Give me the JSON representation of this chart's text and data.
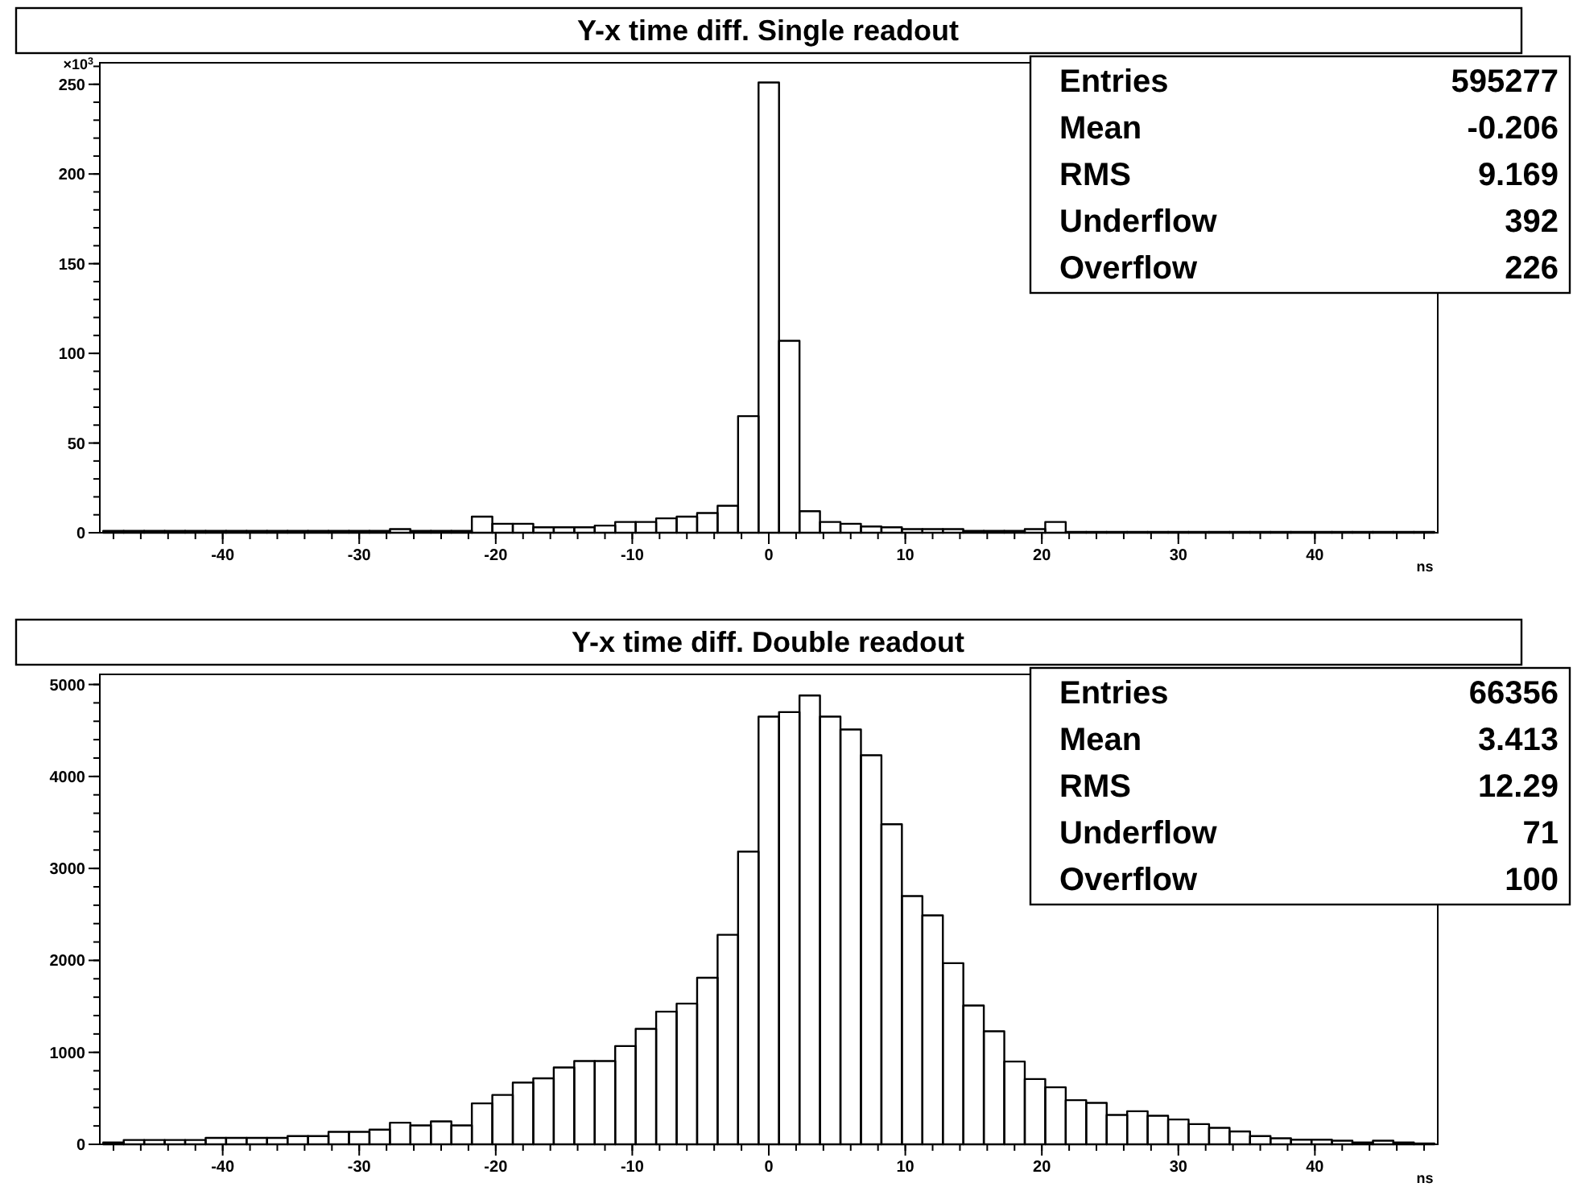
{
  "chart_data": [
    {
      "type": "histogram",
      "title": "Y-x time diff. Single readout",
      "xlabel": "ns",
      "ylabel": "×10$^{3}$",
      "color": "#000000",
      "bins": [
        -48.75,
        -47.25,
        -45.75,
        -44.25,
        -42.75,
        -41.25,
        -39.75,
        -38.25,
        -36.75,
        -35.25,
        -33.75,
        -32.25,
        -30.75,
        -29.25,
        -27.75,
        -26.25,
        -24.75,
        -23.25,
        -21.75,
        -20.25,
        -18.75,
        -17.25,
        -15.75,
        -14.25,
        -12.75,
        -11.25,
        -9.75,
        -8.25,
        -6.75,
        -5.25,
        -3.75,
        -2.25,
        -0.75,
        0.75,
        2.25,
        3.75,
        5.25,
        6.75,
        8.25,
        9.75,
        11.25,
        12.75,
        14.25,
        15.75,
        17.25,
        18.75,
        20.25,
        21.75,
        23.25,
        24.75,
        26.25,
        27.75,
        29.25,
        30.75,
        32.25,
        33.75,
        35.25,
        36.75,
        38.25,
        39.75,
        41.25,
        42.75,
        44.25,
        45.75,
        47.25,
        48.75
      ],
      "values": [
        1,
        1,
        1,
        1,
        1,
        1,
        1,
        1,
        1,
        1,
        1,
        1,
        1,
        1,
        2,
        1,
        1,
        1,
        9,
        5,
        5,
        3,
        3,
        3,
        4,
        6,
        6,
        8,
        9,
        11,
        15,
        65,
        251,
        107,
        12,
        6,
        5,
        3.5,
        3,
        2,
        2,
        2,
        1,
        1,
        1,
        2,
        6,
        0.5,
        0.5,
        0.5,
        0.5,
        0.5,
        0.5,
        0.5,
        0.5,
        0.5,
        0.5,
        0.5,
        0.5,
        0.5,
        0.5,
        0.5,
        0.5,
        0.5,
        0.5
      ],
      "xlim": [
        -49,
        49
      ],
      "xticks": [
        -40,
        -30,
        -20,
        -10,
        0,
        10,
        20,
        30,
        40
      ],
      "ylim": [
        0,
        262
      ],
      "yticks": [
        0,
        50,
        100,
        150,
        200,
        250
      ],
      "annotations": [
        "Entries",
        "595277",
        "Mean",
        "-0.206",
        "RMS",
        "9.169",
        "Underflow",
        "392",
        "Overflow",
        "226"
      ]
    },
    {
      "type": "histogram",
      "title": "Y-x time diff. Double readout",
      "xlabel": "ns",
      "color": "#000000",
      "bins": [
        -48.75,
        -47.25,
        -45.75,
        -44.25,
        -42.75,
        -41.25,
        -39.75,
        -38.25,
        -36.75,
        -35.25,
        -33.75,
        -32.25,
        -30.75,
        -29.25,
        -27.75,
        -26.25,
        -24.75,
        -23.25,
        -21.75,
        -20.25,
        -18.75,
        -17.25,
        -15.75,
        -14.25,
        -12.75,
        -11.25,
        -9.75,
        -8.25,
        -6.75,
        -5.25,
        -3.75,
        -2.25,
        -0.75,
        0.75,
        2.25,
        3.75,
        5.25,
        6.75,
        8.25,
        9.75,
        11.25,
        12.75,
        14.25,
        15.75,
        17.25,
        18.75,
        20.25,
        21.75,
        23.25,
        24.75,
        26.25,
        27.75,
        29.25,
        30.75,
        32.25,
        33.75,
        35.25,
        36.75,
        38.25,
        39.75,
        41.25,
        42.75,
        44.25,
        45.75,
        47.25,
        48.75
      ],
      "values": [
        20,
        47,
        47,
        47,
        47,
        70,
        70,
        70,
        70,
        90,
        90,
        135,
        135,
        160,
        235,
        205,
        250,
        205,
        445,
        537,
        672,
        718,
        835,
        905,
        905,
        1069,
        1256,
        1443,
        1530,
        1811,
        2278,
        3183,
        4650,
        4700,
        4880,
        4650,
        4510,
        4230,
        3480,
        2700,
        2490,
        1970,
        1510,
        1230,
        900,
        710,
        620,
        480,
        450,
        320,
        360,
        310,
        270,
        220,
        180,
        140,
        90,
        65,
        50,
        50,
        40,
        20,
        40,
        20,
        10
      ],
      "xlim": [
        -49,
        49
      ],
      "xticks": [
        -40,
        -30,
        -20,
        -10,
        0,
        10,
        20,
        30,
        40
      ],
      "ylim": [
        0,
        5110
      ],
      "yticks": [
        0,
        1000,
        2000,
        3000,
        4000,
        5000
      ],
      "annotations": [
        "Entries",
        "66356",
        "Mean",
        "3.413",
        "RMS",
        "12.29",
        "Underflow",
        "71",
        "Overflow",
        "100"
      ]
    }
  ]
}
